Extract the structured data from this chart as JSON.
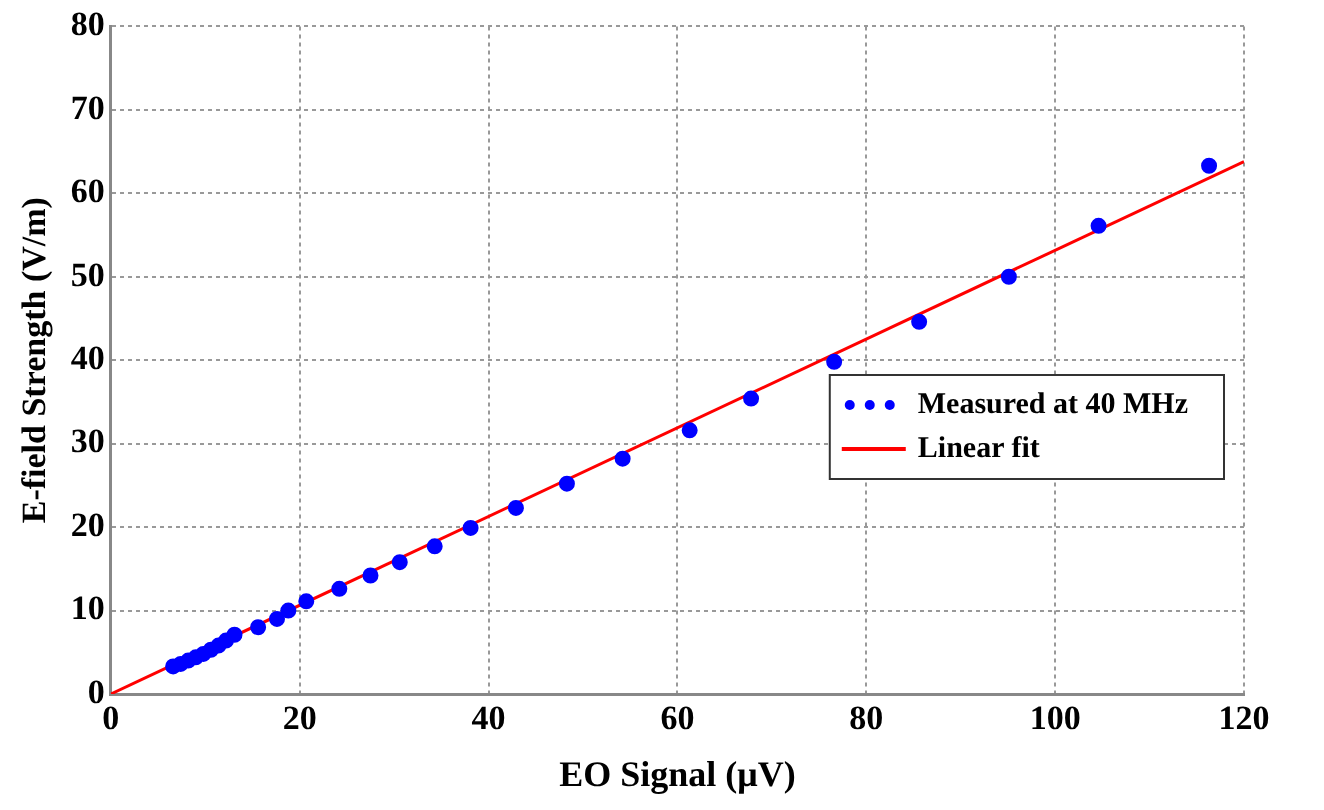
{
  "chart_data": {
    "type": "scatter",
    "xlabel": "EO Signal (μV)",
    "ylabel": "E-field Strength (V/m)",
    "xlim": [
      0,
      120
    ],
    "xticks": [
      0,
      20,
      40,
      60,
      80,
      100,
      120
    ],
    "ylim": [
      0,
      80
    ],
    "yticks": [
      0,
      10,
      20,
      30,
      40,
      50,
      60,
      70,
      80
    ],
    "grid": true,
    "legend": "right",
    "series": [
      {
        "name": "Measured at 40 MHz",
        "marker": "circle",
        "color": "#0000ff",
        "x": [
          6.6,
          7.4,
          8.2,
          9,
          9.8,
          10.6,
          11.4,
          12.2,
          13.1,
          15.6,
          17.6,
          18.8,
          20.7,
          24.2,
          27.5,
          30.6,
          34.3,
          38.1,
          42.9,
          48.3,
          54.2,
          61.3,
          67.8,
          76.6,
          85.6,
          95.1,
          104.6,
          116.3
        ],
        "values": [
          3.3,
          3.6,
          4,
          4.4,
          4.8,
          5.3,
          5.8,
          6.4,
          7.1,
          8,
          9,
          10,
          11.1,
          12.6,
          14.2,
          15.8,
          17.7,
          19.9,
          22.3,
          25.2,
          28.2,
          31.6,
          35.4,
          39.8,
          44.6,
          50,
          56.1,
          63.3
        ]
      },
      {
        "name": "Linear fit",
        "type": "line",
        "color": "#ff0000",
        "line_style": "solid",
        "x": [
          0,
          120
        ],
        "values": [
          0,
          63.8
        ]
      }
    ]
  }
}
